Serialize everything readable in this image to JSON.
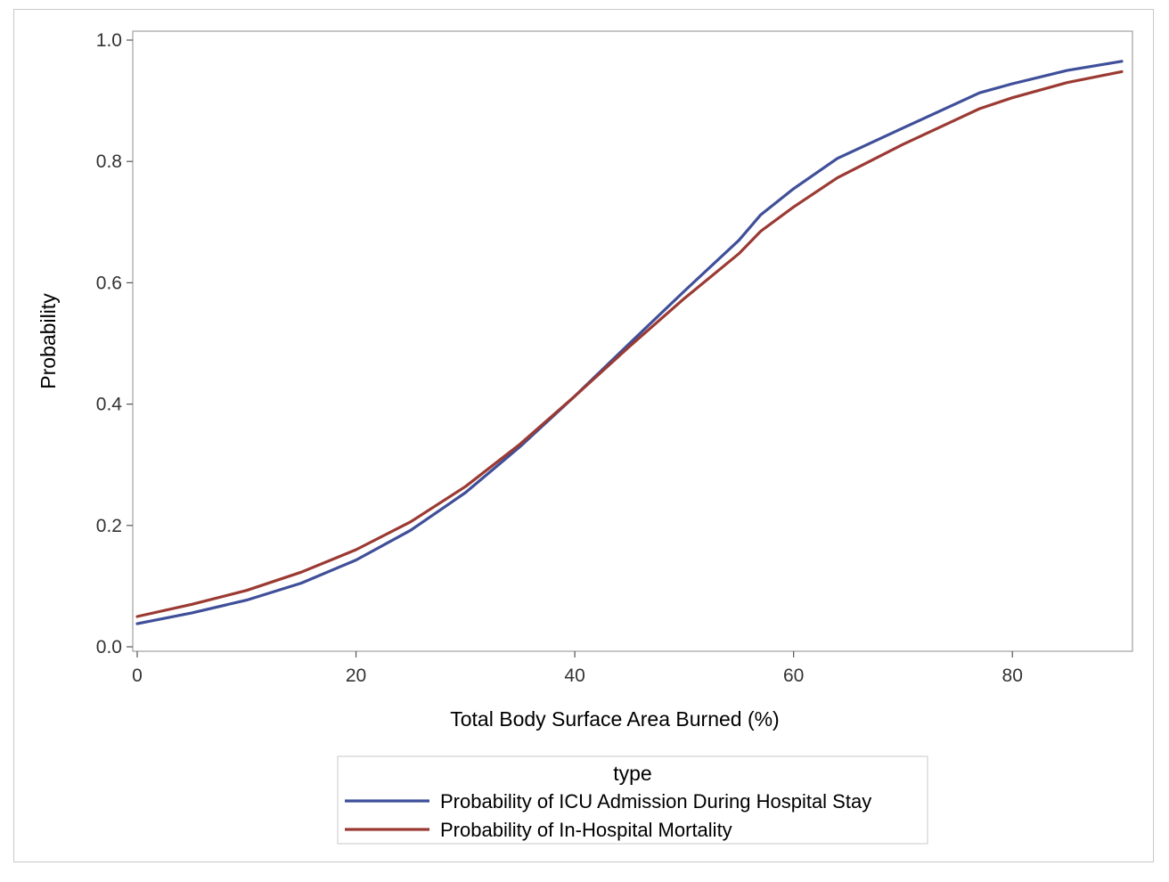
{
  "chart_data": {
    "type": "line",
    "title": "",
    "xlabel": "Total Body Surface Area Burned (%)",
    "ylabel": "Probability",
    "xlim": [
      0,
      90
    ],
    "ylim": [
      0,
      1
    ],
    "xticks": [
      0,
      20,
      40,
      60,
      80
    ],
    "xtick_labels": [
      "0",
      "20",
      "40",
      "60",
      "80"
    ],
    "yticks": [
      0,
      0.2,
      0.4,
      0.6,
      0.8,
      1.0
    ],
    "ytick_labels": [
      "0.0",
      "0.2",
      "0.4",
      "0.6",
      "0.8",
      "1.0"
    ],
    "grid": false,
    "legend": {
      "title": "type",
      "placement": "bottom"
    },
    "x": [
      0,
      5,
      10,
      15,
      20,
      25,
      30,
      35,
      40,
      45,
      50,
      55,
      57,
      60,
      64,
      70,
      77,
      80,
      85,
      90
    ],
    "series": [
      {
        "name": "Probability of ICU Admission During Hospital Stay",
        "color": "#3f4f99",
        "values": [
          0.038,
          0.056,
          0.077,
          0.105,
          0.143,
          0.192,
          0.254,
          0.33,
          0.413,
          0.5,
          0.586,
          0.67,
          0.712,
          0.755,
          0.805,
          0.855,
          0.913,
          0.928,
          0.95,
          0.965
        ]
      },
      {
        "name": "Probability of In-Hospital Mortality",
        "color": "#9b3a33",
        "values": [
          0.05,
          0.07,
          0.093,
          0.123,
          0.16,
          0.206,
          0.264,
          0.334,
          0.413,
          0.495,
          0.574,
          0.648,
          0.685,
          0.725,
          0.773,
          0.828,
          0.887,
          0.905,
          0.93,
          0.948
        ]
      }
    ]
  }
}
